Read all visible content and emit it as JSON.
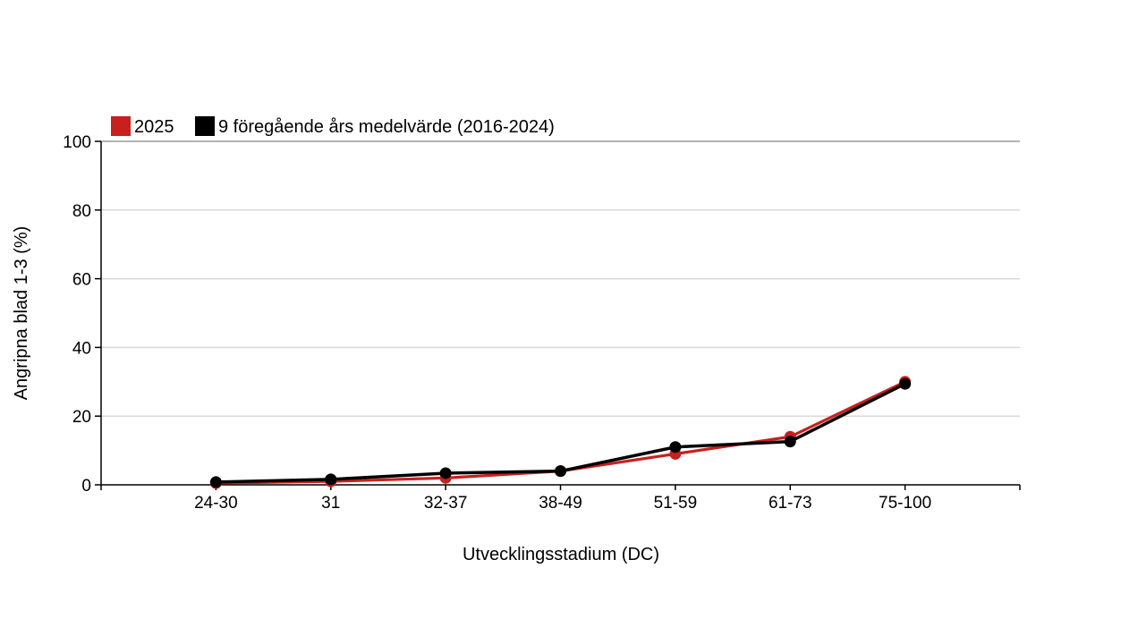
{
  "chart_data": {
    "type": "line",
    "title": "",
    "xlabel": "Utvecklingsstadium (DC)",
    "ylabel": "Angripna blad 1-3 (%)",
    "ylim": [
      0,
      100
    ],
    "yticks": [
      0,
      20,
      40,
      60,
      80,
      100
    ],
    "categories": [
      "24-30",
      "31",
      "32-37",
      "38-49",
      "51-59",
      "61-73",
      "75-100"
    ],
    "grid": true,
    "legend_position": "top-left",
    "series": [
      {
        "name": "2025",
        "color": "#c8201e",
        "values": [
          0.5,
          1,
          2,
          4,
          9,
          14,
          30
        ]
      },
      {
        "name": "9 föregående års medelvärde (2016-2024)",
        "color": "#000000",
        "values": [
          0.8,
          1.6,
          3.4,
          4,
          11,
          12.6,
          29.4
        ]
      }
    ]
  }
}
